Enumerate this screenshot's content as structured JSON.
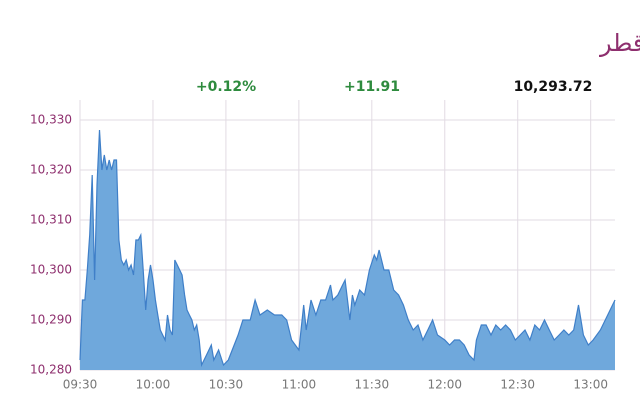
{
  "chart_data": {
    "type": "area",
    "title": "مؤشر بورصة قطر",
    "annotations": [
      "+0.12%",
      "+11.91",
      "10,293.72"
    ],
    "color": "#6fa8dc",
    "line_color": "#3f7fc8",
    "grid": true,
    "x": [
      "09:30",
      "09:31",
      "09:32",
      "09:33",
      "09:34",
      "09:35",
      "09:36",
      "09:37",
      "09:38",
      "09:39",
      "09:40",
      "09:41",
      "09:42",
      "09:43",
      "09:44",
      "09:45",
      "09:46",
      "09:47",
      "09:48",
      "09:49",
      "09:50",
      "09:51",
      "09:52",
      "09:53",
      "09:54",
      "09:55",
      "09:56",
      "09:57",
      "09:58",
      "09:59",
      "10:00",
      "10:01",
      "10:02",
      "10:03",
      "10:04",
      "10:05",
      "10:06",
      "10:07",
      "10:08",
      "10:09",
      "10:10",
      "10:11",
      "10:12",
      "10:13",
      "10:14",
      "10:15",
      "10:16",
      "10:17",
      "10:18",
      "10:19",
      "10:20",
      "10:22",
      "10:24",
      "10:25",
      "10:27",
      "10:29",
      "10:31",
      "10:35",
      "10:37",
      "10:40",
      "10:42",
      "10:44",
      "10:47",
      "10:50",
      "10:53",
      "10:55",
      "10:57",
      "11:00",
      "11:02",
      "11:03",
      "11:05",
      "11:07",
      "11:09",
      "11:11",
      "11:13",
      "11:14",
      "11:16",
      "11:18",
      "11:19",
      "11:21",
      "11:22",
      "11:23",
      "11:25",
      "11:27",
      "11:29",
      "11:31",
      "11:32",
      "11:33",
      "11:35",
      "11:37",
      "11:39",
      "11:41",
      "11:43",
      "11:45",
      "11:47",
      "11:49",
      "11:51",
      "11:53",
      "11:55",
      "11:57",
      "12:00",
      "12:02",
      "12:04",
      "12:06",
      "12:08",
      "12:10",
      "12:12",
      "12:13",
      "12:15",
      "12:17",
      "12:19",
      "12:21",
      "12:23",
      "12:25",
      "12:27",
      "12:29",
      "12:31",
      "12:33",
      "12:35",
      "12:37",
      "12:39",
      "12:41",
      "12:43",
      "12:45",
      "12:47",
      "12:49",
      "12:51",
      "12:53",
      "12:55",
      "12:57",
      "12:59",
      "13:01",
      "13:04",
      "13:07",
      "13:10"
    ],
    "values": [
      10282,
      10294,
      10294,
      10300,
      10307,
      10319,
      10298,
      10317,
      10328,
      10320,
      10323,
      10320,
      10322,
      10320,
      10322,
      10322,
      10306,
      10302,
      10301,
      10302,
      10300,
      10301,
      10299,
      10306,
      10306,
      10307,
      10300,
      10292,
      10298,
      10301,
      10298,
      10294,
      10291,
      10288,
      10287,
      10286,
      10291,
      10288,
      10287,
      10302,
      10301,
      10300,
      10299,
      10295,
      10292,
      10291,
      10290,
      10288,
      10289,
      10286,
      10281,
      10283,
      10285,
      10282,
      10284,
      10281,
      10282,
      10287,
      10290,
      10290,
      10294,
      10291,
      10292,
      10291,
      10291,
      10290,
      10286,
      10284,
      10293,
      10288,
      10294,
      10291,
      10294,
      10294,
      10297,
      10294,
      10295,
      10297,
      10298,
      10290,
      10295,
      10293,
      10296,
      10295,
      10300,
      10303,
      10302,
      10304,
      10300,
      10300,
      10296,
      10295,
      10293,
      10290,
      10288,
      10289,
      10286,
      10288,
      10290,
      10287,
      10286,
      10285,
      10286,
      10286,
      10285,
      10283,
      10282,
      10286,
      10289,
      10289,
      10287,
      10289,
      10288,
      10289,
      10288,
      10286,
      10287,
      10288,
      10286,
      10289,
      10288,
      10290,
      10288,
      10286,
      10287,
      10288,
      10287,
      10288,
      10293,
      10287,
      10285,
      10286,
      10288,
      10291,
      10294
    ],
    "xlim": [
      "09:30",
      "13:10"
    ],
    "xticks": [
      "09:30",
      "10:00",
      "10:30",
      "11:00",
      "11:30",
      "12:00",
      "12:30",
      "13:00"
    ],
    "ylim": [
      10280,
      10334
    ],
    "yticks": [
      {
        "value": 10280,
        "label": "10,280"
      },
      {
        "value": 10290,
        "label": "10,290"
      },
      {
        "value": 10300,
        "label": "10,300"
      },
      {
        "value": 10310,
        "label": "10,310"
      },
      {
        "value": 10320,
        "label": "10,320"
      },
      {
        "value": 10330,
        "label": "10,330"
      }
    ]
  }
}
